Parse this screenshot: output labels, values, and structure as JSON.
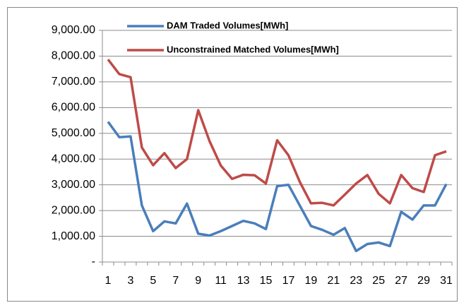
{
  "chart_data": {
    "type": "line",
    "categories": [
      1,
      null,
      3,
      null,
      5,
      null,
      7,
      null,
      9,
      null,
      11,
      null,
      13,
      null,
      15,
      null,
      17,
      null,
      19,
      null,
      21,
      null,
      23,
      null,
      25,
      null,
      27,
      null,
      29,
      null,
      31
    ],
    "series": [
      {
        "name": "DAM Traded Volumes[MWh]",
        "color": "#4a7ebb",
        "values": [
          5450,
          4850,
          4880,
          2200,
          1200,
          1580,
          1500,
          2270,
          1100,
          1030,
          1200,
          1400,
          1600,
          1500,
          1280,
          2950,
          3000,
          2200,
          1400,
          1250,
          1060,
          1320,
          430,
          700,
          760,
          620,
          1950,
          1650,
          2200,
          2200,
          3030
        ]
      },
      {
        "name": "Unconstrained Matched Volumes[MWh]",
        "color": "#be4b48",
        "values": [
          7870,
          7300,
          7180,
          4450,
          3760,
          4230,
          3650,
          4000,
          5900,
          4700,
          3750,
          3230,
          3390,
          3370,
          3050,
          4730,
          4150,
          3120,
          2280,
          2300,
          2200,
          2620,
          3050,
          3380,
          2650,
          2280,
          3380,
          2870,
          2720,
          4150,
          4300
        ]
      }
    ],
    "ylim": [
      0,
      9000
    ],
    "yticks": [
      {
        "value": 0,
        "label": "-"
      },
      {
        "value": 1000,
        "label": "1,000.00"
      },
      {
        "value": 2000,
        "label": "2,000.00"
      },
      {
        "value": 3000,
        "label": "3,000.00"
      },
      {
        "value": 4000,
        "label": "4,000.00"
      },
      {
        "value": 5000,
        "label": "5,000.00"
      },
      {
        "value": 6000,
        "label": "6,000.00"
      },
      {
        "value": 7000,
        "label": "7,000.00"
      },
      {
        "value": 8000,
        "label": "8,000.00"
      },
      {
        "value": 9000,
        "label": "9,000.00"
      }
    ],
    "grid": true
  }
}
